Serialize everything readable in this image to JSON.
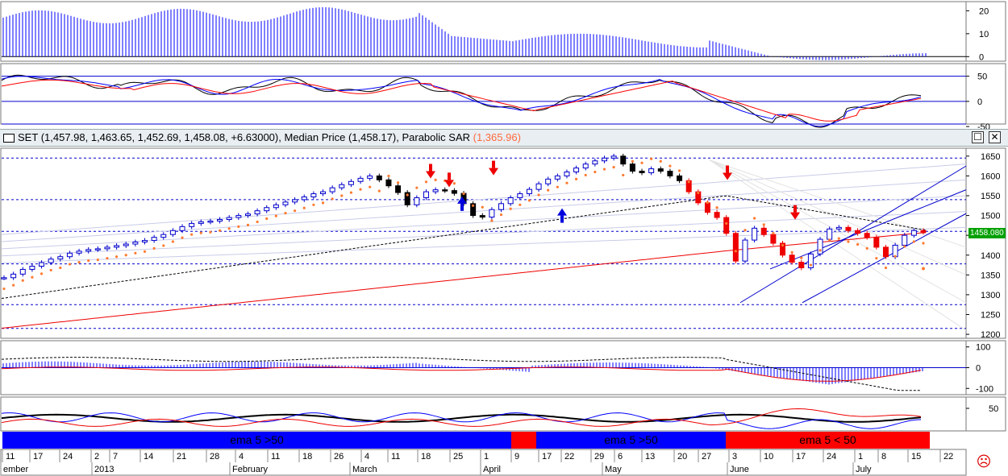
{
  "header": {
    "symbol": "SET",
    "ohlc": "(1,457.98, 1,463.65, 1,452.69, 1,458.08, +6.63000),",
    "median_label": "Median Price (1,458.17),",
    "sar_label": "Parabolic SAR",
    "sar_value": "(1,365.96)",
    "maximize_glyph": "☐",
    "close_glyph": "✕"
  },
  "last_price": "1458.080",
  "bands": [
    {
      "label": "ema 5 >50",
      "color": "#0000ff"
    },
    {
      "label": "",
      "color": "#ff0000"
    },
    {
      "label": "ema 5 >50",
      "color": "#0000ff"
    },
    {
      "label": "ema 5 < 50",
      "color": "#ff0000"
    }
  ],
  "status_icon": "sad-face-icon",
  "chart_data": [
    {
      "type": "bar",
      "panel": "top-histogram",
      "ylim": [
        -2,
        24
      ],
      "yticks": [
        "20",
        "10",
        "0"
      ]
    },
    {
      "type": "line",
      "panel": "oscillator",
      "ylim": [
        -45,
        75
      ],
      "yticks": [
        "50",
        "0",
        "-50"
      ],
      "levels": [
        50,
        0,
        -45
      ]
    },
    {
      "type": "candlestick",
      "panel": "price",
      "ylim": [
        1190,
        1670
      ],
      "yticks": [
        "1650",
        "1600",
        "1550",
        "1500",
        "1450",
        "1400",
        "1350",
        "1300",
        "1250",
        "1200"
      ],
      "series": [
        {
          "name": "SET",
          "values": [
            1343,
            1352,
            1364,
            1372,
            1381,
            1390,
            1396,
            1405,
            1410,
            1414,
            1416,
            1420,
            1424,
            1428,
            1433,
            1437,
            1445,
            1452,
            1462,
            1472,
            1480,
            1484,
            1486,
            1490,
            1495,
            1500,
            1504,
            1512,
            1520,
            1527,
            1534,
            1540,
            1547,
            1555,
            1560,
            1570,
            1578,
            1586,
            1594,
            1600,
            1590,
            1575,
            1558,
            1527,
            1545,
            1560,
            1565,
            1563,
            1556,
            1530,
            1500,
            1496,
            1515,
            1530,
            1545,
            1555,
            1566,
            1580,
            1592,
            1600,
            1610,
            1620,
            1630,
            1638,
            1645,
            1650,
            1630,
            1612,
            1608,
            1618,
            1612,
            1600,
            1588,
            1560,
            1532,
            1508,
            1495,
            1455,
            1385,
            1438,
            1468,
            1452,
            1430,
            1400,
            1382,
            1368,
            1403,
            1440,
            1466,
            1470,
            1462,
            1455,
            1445,
            1420,
            1396,
            1425,
            1450,
            1462,
            1458
          ]
        },
        {
          "name": "Median Price",
          "values": [
            1470,
            1466,
            1462,
            1460,
            1459,
            1458
          ]
        },
        {
          "name": "Parabolic SAR",
          "values": [
            1365.96
          ]
        }
      ]
    },
    {
      "type": "bar",
      "panel": "macd",
      "ylim": [
        -130,
        130
      ],
      "yticks": [
        "100",
        "0",
        "-100"
      ]
    },
    {
      "type": "line",
      "panel": "dmi",
      "ylim": [
        0,
        75
      ],
      "yticks": [
        "50"
      ]
    }
  ],
  "x_axis": {
    "ticks": [
      {
        "label": "11",
        "x": 7
      },
      {
        "label": "17",
        "x": 41
      },
      {
        "label": "24",
        "x": 78
      },
      {
        "label": "2",
        "x": 117
      },
      {
        "label": "7",
        "x": 140
      },
      {
        "label": "14",
        "x": 178
      },
      {
        "label": "21",
        "x": 219
      },
      {
        "label": "28",
        "x": 260
      },
      {
        "label": "4",
        "x": 296
      },
      {
        "label": "11",
        "x": 336
      },
      {
        "label": "18",
        "x": 375
      },
      {
        "label": "26",
        "x": 414
      },
      {
        "label": "4",
        "x": 452
      },
      {
        "label": "11",
        "x": 485
      },
      {
        "label": "18",
        "x": 522
      },
      {
        "label": "25",
        "x": 562
      },
      {
        "label": "1",
        "x": 600
      },
      {
        "label": "9",
        "x": 638
      },
      {
        "label": "17",
        "x": 672
      },
      {
        "label": "22",
        "x": 700
      },
      {
        "label": "29",
        "x": 737
      },
      {
        "label": "6",
        "x": 766
      },
      {
        "label": "13",
        "x": 800
      },
      {
        "label": "20",
        "x": 840
      },
      {
        "label": "27",
        "x": 870
      },
      {
        "label": "3",
        "x": 908
      },
      {
        "label": "10",
        "x": 947
      },
      {
        "label": "17",
        "x": 987
      },
      {
        "label": "24",
        "x": 1025
      },
      {
        "label": "1",
        "x": 1064
      },
      {
        "label": "8",
        "x": 1093
      },
      {
        "label": "15",
        "x": 1130
      },
      {
        "label": "22",
        "x": 1170
      }
    ],
    "months": [
      {
        "label": "ember",
        "x": 4
      },
      {
        "label": "2013",
        "x": 117
      },
      {
        "label": "February",
        "x": 288
      },
      {
        "label": "March",
        "x": 437
      },
      {
        "label": "April",
        "x": 599
      },
      {
        "label": "May",
        "x": 750
      },
      {
        "label": "June",
        "x": 905
      },
      {
        "label": "July",
        "x": 1061
      }
    ]
  }
}
